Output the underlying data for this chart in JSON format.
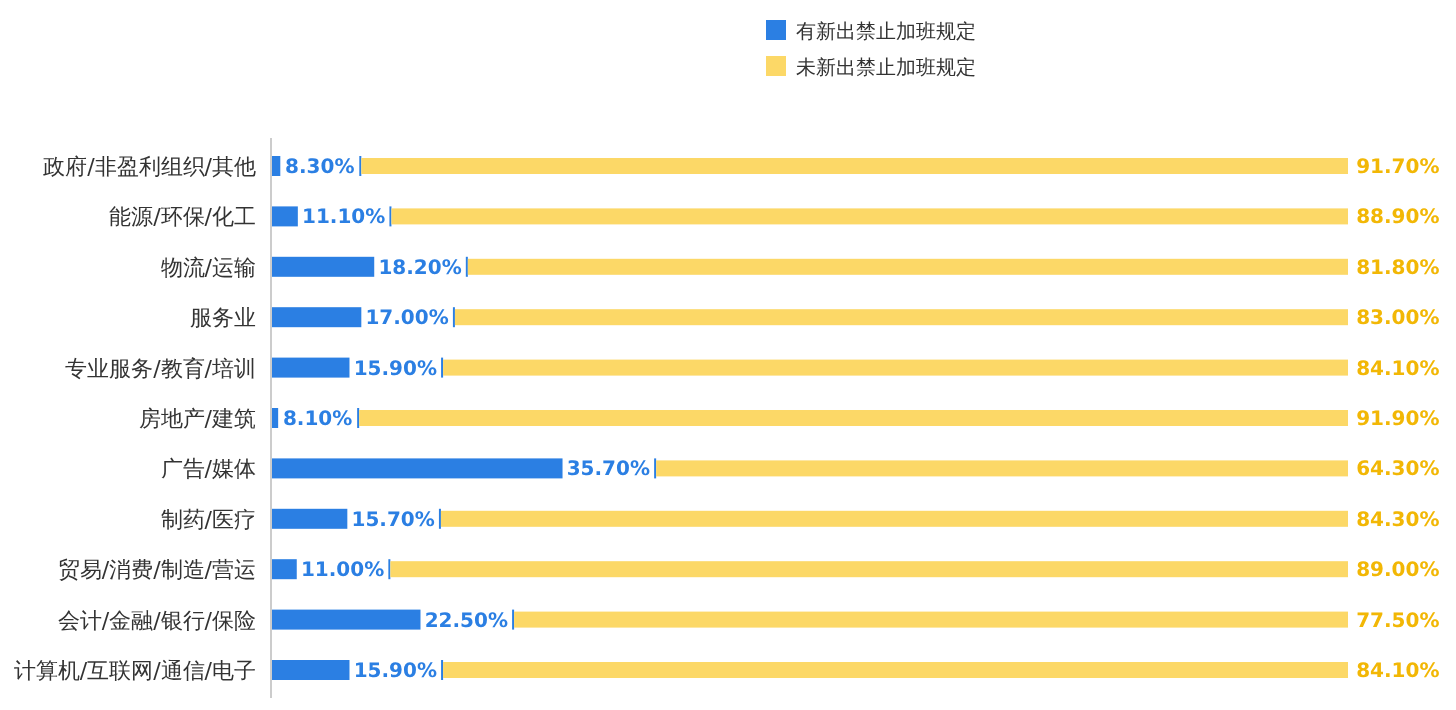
{
  "chart_data": {
    "type": "bar",
    "orientation": "horizontal",
    "stacked": true,
    "legend": "top",
    "categories": [
      "政府/非盈利组织/其他",
      "能源/环保/化工",
      "物流/运输",
      "服务业",
      "专业服务/教育/培训",
      "房地产/建筑",
      "广告/媒体",
      "制药/医疗",
      "贸易/消费/制造/营运",
      "会计/金融/银行/保险",
      "计算机/互联网/通信/电子"
    ],
    "series": [
      {
        "name": "有新出禁止加班规定",
        "color": "#2b7fe3",
        "values": [
          8.3,
          11.1,
          18.2,
          17.0,
          15.9,
          8.1,
          35.7,
          15.7,
          11.0,
          22.5,
          15.9
        ],
        "value_labels": [
          "8.30%",
          "11.10%",
          "18.20%",
          "17.00%",
          "15.90%",
          "8.10%",
          "35.70%",
          "15.70%",
          "11.00%",
          "22.50%",
          "15.90%"
        ]
      },
      {
        "name": "未新出禁止加班规定",
        "color": "#fcd867",
        "values": [
          91.7,
          88.9,
          81.8,
          83.0,
          84.1,
          91.9,
          64.3,
          84.3,
          89.0,
          77.5,
          84.1
        ],
        "value_labels": [
          "91.70%",
          "88.90%",
          "81.80%",
          "83.00%",
          "84.10%",
          "91.90%",
          "64.30%",
          "84.30%",
          "89.00%",
          "77.50%",
          "84.10%"
        ]
      }
    ]
  }
}
